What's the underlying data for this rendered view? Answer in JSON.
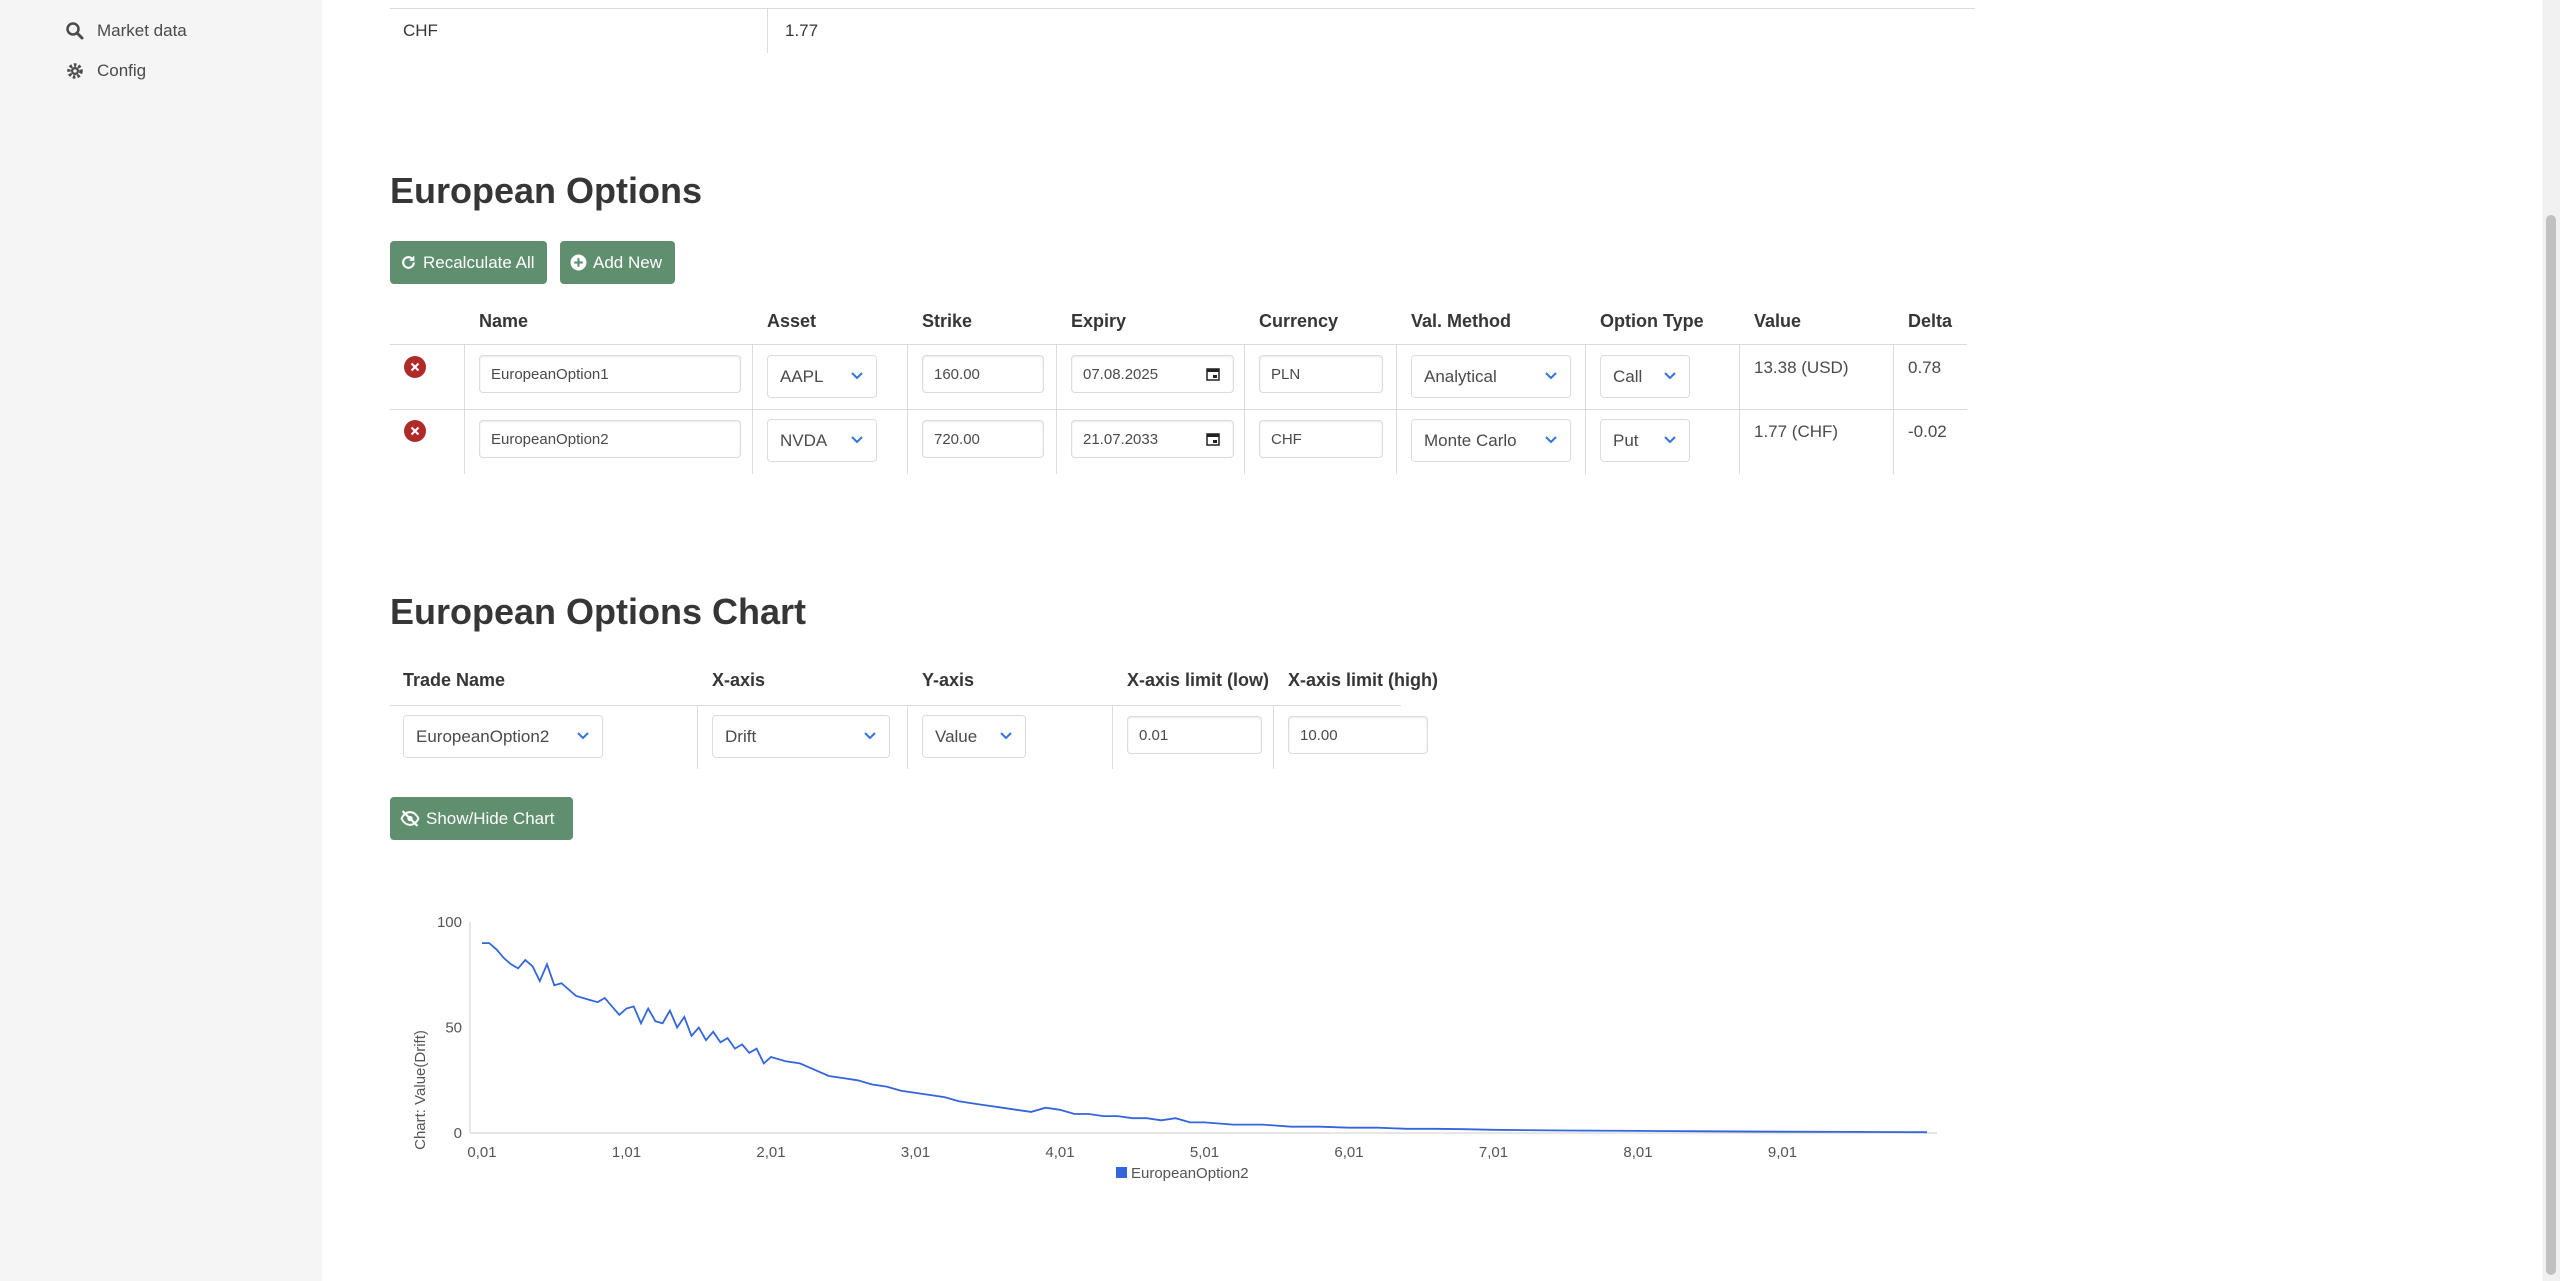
{
  "sidebar": {
    "items": [
      {
        "label": "Market data",
        "icon": "search-icon"
      },
      {
        "label": "Config",
        "icon": "gear-icon"
      }
    ]
  },
  "fx_table": {
    "currency": "CHF",
    "value": "1.77"
  },
  "options": {
    "title": "European Options",
    "recalculate_label": "Recalculate All",
    "add_label": "Add New",
    "columns": [
      "Name",
      "Asset",
      "Strike",
      "Expiry",
      "Currency",
      "Val. Method",
      "Option Type",
      "Value",
      "Delta"
    ],
    "rows": [
      {
        "name": "EuropeanOption1",
        "asset": "AAPL",
        "strike": "160.00",
        "expiry": "07.08.2025",
        "currency": "PLN",
        "method": "Analytical",
        "type": "Call",
        "value": "13.38 (USD)",
        "delta": "0.78"
      },
      {
        "name": "EuropeanOption2",
        "asset": "NVDA",
        "strike": "720.00",
        "expiry": "21.07.2033",
        "currency": "CHF",
        "method": "Monte Carlo",
        "type": "Put",
        "value": "1.77 (CHF)",
        "delta": "-0.02"
      }
    ]
  },
  "chart_controls": {
    "title": "European Options Chart",
    "columns": [
      "Trade Name",
      "X-axis",
      "Y-axis",
      "X-axis limit (low)",
      "X-axis limit (high)"
    ],
    "trade_name": "EuropeanOption2",
    "x_axis": "Drift",
    "y_axis": "Value",
    "x_low": "0.01",
    "x_high": "10.00",
    "toggle_label": "Show/Hide Chart"
  },
  "chart_data": {
    "type": "line",
    "title": "",
    "xlabel": "",
    "ylabel": "Chart: Value(Drift)",
    "xlim": [
      0.01,
      10.01
    ],
    "ylim": [
      0,
      100
    ],
    "x_ticks": [
      "0,01",
      "1,01",
      "2,01",
      "3,01",
      "4,01",
      "5,01",
      "6,01",
      "7,01",
      "8,01",
      "9,01"
    ],
    "y_ticks": [
      "0",
      "50",
      "100"
    ],
    "legend": "bottom-center",
    "color": "#3366dd",
    "series": [
      {
        "name": "EuropeanOption2",
        "x": [
          0.01,
          0.06,
          0.11,
          0.16,
          0.21,
          0.26,
          0.31,
          0.36,
          0.41,
          0.46,
          0.51,
          0.56,
          0.61,
          0.66,
          0.71,
          0.76,
          0.81,
          0.86,
          0.91,
          0.96,
          1.01,
          1.06,
          1.11,
          1.16,
          1.21,
          1.26,
          1.31,
          1.36,
          1.41,
          1.46,
          1.51,
          1.56,
          1.61,
          1.66,
          1.71,
          1.76,
          1.81,
          1.86,
          1.91,
          1.96,
          2.01,
          2.11,
          2.21,
          2.31,
          2.41,
          2.51,
          2.61,
          2.71,
          2.81,
          2.91,
          3.01,
          3.11,
          3.21,
          3.31,
          3.41,
          3.51,
          3.61,
          3.71,
          3.81,
          3.91,
          4.01,
          4.11,
          4.21,
          4.31,
          4.41,
          4.51,
          4.61,
          4.71,
          4.81,
          4.91,
          5.01,
          5.21,
          5.41,
          5.61,
          5.81,
          6.01,
          6.21,
          6.41,
          6.61,
          6.81,
          7.01,
          7.51,
          8.01,
          8.51,
          9.01,
          9.51,
          10.01
        ],
        "y": [
          90,
          90,
          87,
          83,
          80,
          78,
          82,
          79,
          72,
          80,
          70,
          71,
          68,
          65,
          64,
          63,
          62,
          64,
          60,
          56,
          59,
          60,
          52,
          59,
          53,
          52,
          58,
          50,
          55,
          46,
          50,
          44,
          48,
          43,
          45,
          40,
          42,
          38,
          40,
          33,
          36,
          34,
          33,
          30,
          27,
          26,
          25,
          23,
          22,
          20,
          19,
          18,
          17,
          15,
          14,
          13,
          12,
          11,
          10,
          12,
          11,
          9,
          9,
          8,
          8,
          7,
          7,
          6,
          7,
          5,
          5,
          4,
          4,
          3,
          3,
          2.5,
          2.5,
          2,
          2,
          1.8,
          1.5,
          1.2,
          1,
          0.8,
          0.6,
          0.5,
          0.4
        ]
      }
    ]
  }
}
